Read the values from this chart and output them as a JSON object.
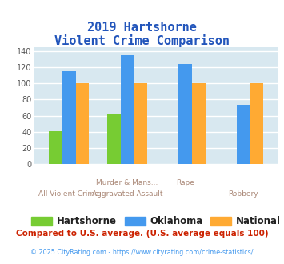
{
  "title_line1": "2019 Hartshorne",
  "title_line2": "Violent Crime Comparison",
  "hartshorne": [
    41,
    63,
    0,
    0
  ],
  "oklahoma": [
    115,
    135,
    124,
    73
  ],
  "national": [
    100,
    100,
    100,
    100
  ],
  "bar_color_hartshorne": "#77cc33",
  "bar_color_oklahoma": "#4499ee",
  "bar_color_national": "#ffaa33",
  "ylim": [
    0,
    145
  ],
  "yticks": [
    0,
    20,
    40,
    60,
    80,
    100,
    120,
    140
  ],
  "plot_bg": "#d8e8f0",
  "grid_color": "#ffffff",
  "title_color": "#2255bb",
  "xlabel_color_row1": "#aa8877",
  "xlabel_color_row2": "#aa8877",
  "legend_label_color": "#222222",
  "footer_text": "Compared to U.S. average. (U.S. average equals 100)",
  "footer_color": "#cc2200",
  "credit_text": "© 2025 CityRating.com - https://www.cityrating.com/crime-statistics/",
  "credit_color": "#4499ee",
  "bar_width": 0.23,
  "row1_labels": [
    "",
    "Murder & Mans...",
    "Rape",
    ""
  ],
  "row2_labels": [
    "All Violent Crime",
    "Aggravated Assault",
    "",
    "Robbery"
  ]
}
